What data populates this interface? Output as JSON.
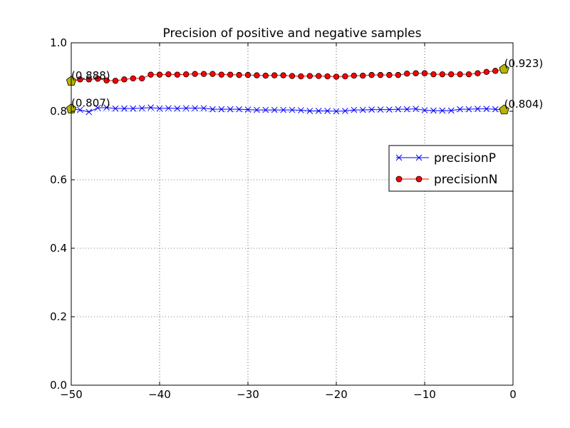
{
  "chart_data": {
    "type": "line",
    "title": "Precision of positive and negative samples",
    "xlabel": "",
    "ylabel": "",
    "xlim": [
      -50,
      0
    ],
    "ylim": [
      0.0,
      1.0
    ],
    "x_ticks": [
      -50,
      -40,
      -30,
      -20,
      -10,
      0
    ],
    "x_tick_labels": [
      "−50",
      "−40",
      "−30",
      "−20",
      "−10",
      "0"
    ],
    "y_ticks": [
      0.0,
      0.2,
      0.4,
      0.6,
      0.8,
      1.0
    ],
    "y_tick_labels": [
      "0.0",
      "0.2",
      "0.4",
      "0.6",
      "0.8",
      "1.0"
    ],
    "grid": true,
    "legend_position": "center-right",
    "x": [
      -50,
      -49,
      -48,
      -47,
      -46,
      -45,
      -44,
      -43,
      -42,
      -41,
      -40,
      -39,
      -38,
      -37,
      -36,
      -35,
      -34,
      -33,
      -32,
      -31,
      -30,
      -29,
      -28,
      -27,
      -26,
      -25,
      -24,
      -23,
      -22,
      -21,
      -20,
      -19,
      -18,
      -17,
      -16,
      -15,
      -14,
      -13,
      -12,
      -11,
      -10,
      -9,
      -8,
      -7,
      -6,
      -5,
      -4,
      -3,
      -2,
      -1
    ],
    "series": [
      {
        "name": "precisionP",
        "color": "#0000ff",
        "marker": "x",
        "values": [
          0.807,
          0.804,
          0.798,
          0.81,
          0.811,
          0.808,
          0.808,
          0.808,
          0.809,
          0.811,
          0.808,
          0.809,
          0.808,
          0.809,
          0.809,
          0.809,
          0.806,
          0.806,
          0.806,
          0.806,
          0.805,
          0.804,
          0.804,
          0.804,
          0.804,
          0.804,
          0.803,
          0.801,
          0.801,
          0.801,
          0.8,
          0.801,
          0.804,
          0.804,
          0.805,
          0.805,
          0.805,
          0.806,
          0.806,
          0.807,
          0.803,
          0.802,
          0.802,
          0.802,
          0.806,
          0.806,
          0.807,
          0.807,
          0.806,
          0.804
        ]
      },
      {
        "name": "precisionN",
        "color": "#ff0000",
        "marker": "o",
        "values": [
          0.888,
          0.893,
          0.893,
          0.895,
          0.89,
          0.889,
          0.893,
          0.896,
          0.896,
          0.907,
          0.907,
          0.908,
          0.907,
          0.908,
          0.909,
          0.909,
          0.909,
          0.907,
          0.907,
          0.906,
          0.906,
          0.905,
          0.904,
          0.905,
          0.905,
          0.903,
          0.902,
          0.903,
          0.903,
          0.902,
          0.901,
          0.902,
          0.904,
          0.904,
          0.906,
          0.906,
          0.906,
          0.906,
          0.91,
          0.911,
          0.911,
          0.908,
          0.908,
          0.908,
          0.908,
          0.908,
          0.911,
          0.915,
          0.918,
          0.923
        ]
      }
    ],
    "endpoint_marker_color": "#b5b500",
    "annotations": [
      {
        "text": "(0.888)",
        "x": -50,
        "y": 0.888
      },
      {
        "text": "(0.807)",
        "x": -50,
        "y": 0.807
      },
      {
        "text": "(0.923)",
        "x": -1,
        "y": 0.923
      },
      {
        "text": "(0.804)",
        "x": -1,
        "y": 0.804
      }
    ]
  }
}
